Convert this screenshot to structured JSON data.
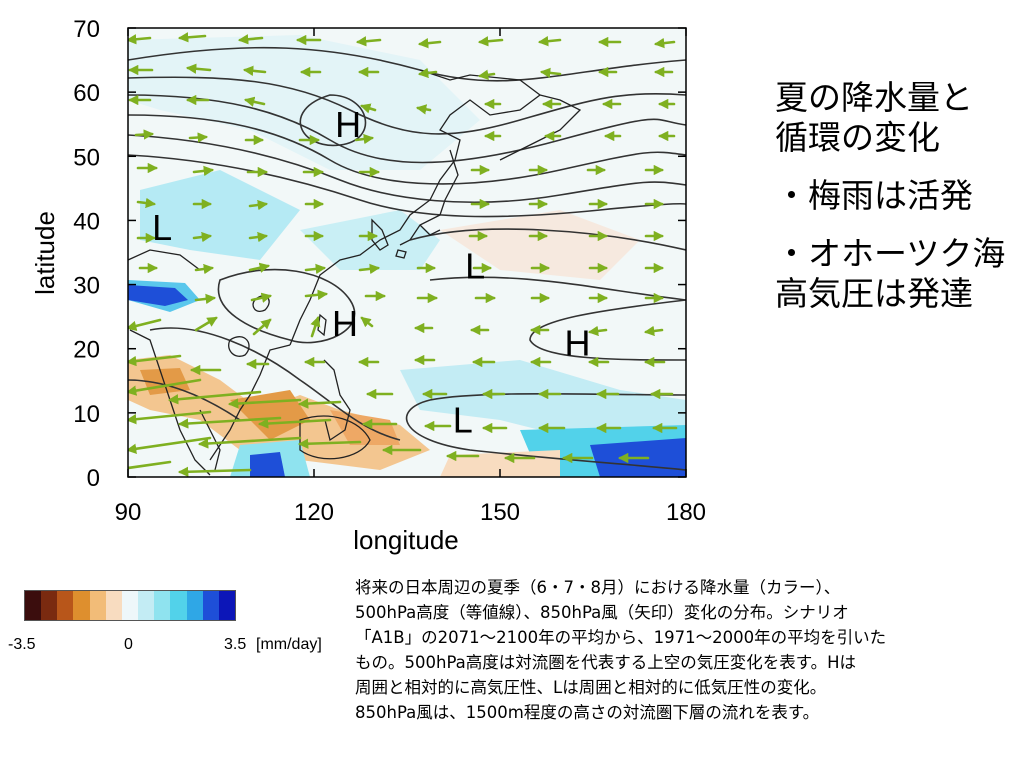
{
  "map": {
    "x_axis_label": "longitude",
    "y_axis_label": "latitude",
    "x_ticks": [
      "90",
      "120",
      "150",
      "180"
    ],
    "y_ticks": [
      "0",
      "10",
      "20",
      "30",
      "40",
      "50",
      "60",
      "70"
    ],
    "lon_range": [
      90,
      180
    ],
    "lat_range": [
      0,
      70
    ],
    "pressure_labels": [
      {
        "text": "H",
        "lon": 125.5,
        "lat": 55
      },
      {
        "text": "L",
        "lon": 95.5,
        "lat": 39
      },
      {
        "text": "L",
        "lon": 146,
        "lat": 33
      },
      {
        "text": "H",
        "lon": 125,
        "lat": 24
      },
      {
        "text": "H",
        "lon": 162.5,
        "lat": 21
      },
      {
        "text": "L",
        "lon": 144,
        "lat": 9
      }
    ],
    "colors": {
      "contour": "#333333",
      "wind_arrow": "#7fb020",
      "coast": "#222222"
    }
  },
  "side_text": {
    "title": "夏の降水量と\n循環の変化",
    "bullet1": "・梅雨は活発",
    "bullet2": "・オホーツク海\n高気圧は発達"
  },
  "colorbar": {
    "colors": [
      "#3b0d0d",
      "#7a2a10",
      "#b8561a",
      "#de8f2e",
      "#f2bc78",
      "#f8dcc0",
      "#eef7fa",
      "#c3ecf4",
      "#8fe3ef",
      "#52d2ea",
      "#2fa7e6",
      "#1e4fd8",
      "#0c16b8"
    ],
    "min_label": "-3.5",
    "mid_label": "0",
    "max_label": "3.5",
    "unit": "[mm/day]"
  },
  "caption": "将来の日本周辺の夏季（6・7・8月）における降水量（カラー）、\n500hPa高度（等値線）、850hPa風（矢印）変化の分布。シナリオ\n「A1B」の2071～2100年の平均から、1971～2000年の平均を引いた\nもの。500hPa高度は対流圏を代表する上空の気圧変化を表す。Hは\n周囲と相対的に高気圧性、Lは周囲と相対的に低気圧性の変化。\n850hPa風は、1500m程度の高さの対流圏下層の流れを表す。"
}
